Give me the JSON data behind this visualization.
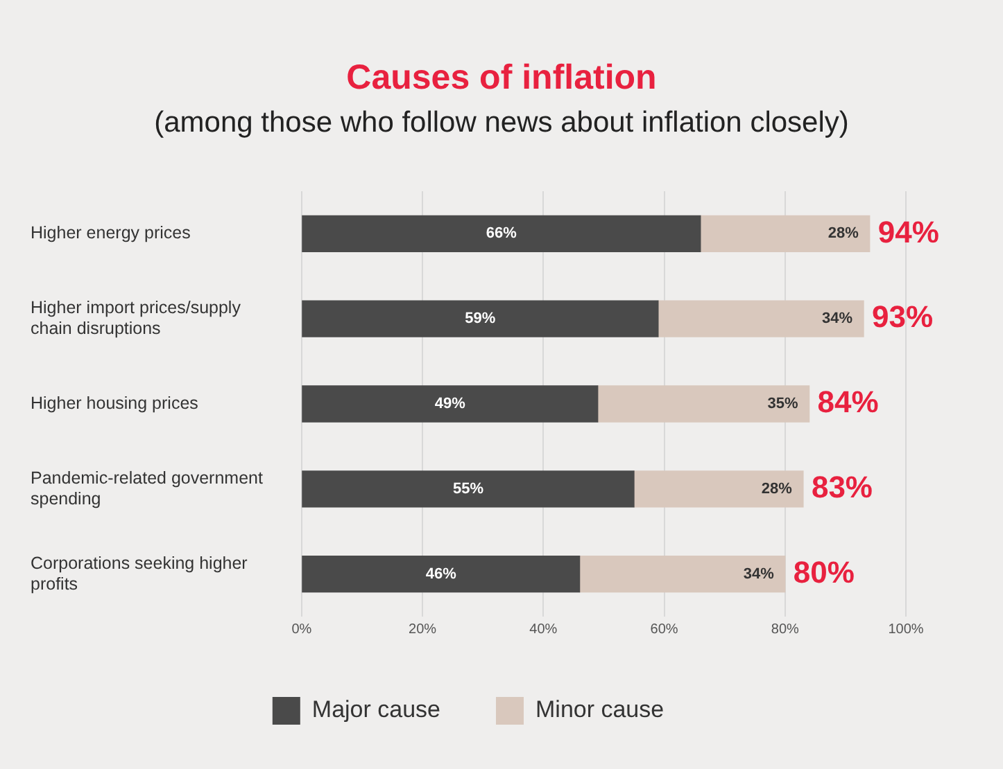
{
  "chart_data": {
    "type": "bar",
    "orientation": "horizontal",
    "stacked": true,
    "title": "Causes of inflation",
    "subtitle": "(among those who follow news about inflation closely)",
    "categories": [
      "Higher energy prices",
      "Higher import prices/supply chain disruptions",
      "Higher housing prices",
      "Pandemic-related government spending",
      "Corporations seeking higher profits"
    ],
    "series": [
      {
        "name": "Major cause",
        "color": "#4a4a4a",
        "values": [
          66,
          59,
          49,
          55,
          46
        ],
        "value_labels": [
          "66%",
          "59%",
          "49%",
          "55%",
          "46%"
        ]
      },
      {
        "name": "Minor cause",
        "color": "#d9c8bd",
        "values": [
          28,
          34,
          35,
          28,
          34
        ],
        "value_labels": [
          "28%",
          "34%",
          "35%",
          "28%",
          "34%"
        ]
      }
    ],
    "totals": [
      "94%",
      "93%",
      "84%",
      "83%",
      "80%"
    ],
    "xlim": [
      0,
      100
    ],
    "xticks": [
      {
        "value": 0,
        "label": "0%"
      },
      {
        "value": 20,
        "label": "20%"
      },
      {
        "value": 40,
        "label": "40%"
      },
      {
        "value": 60,
        "label": "60%"
      },
      {
        "value": 80,
        "label": "80%"
      },
      {
        "value": 100,
        "label": "100%"
      }
    ],
    "grid": "x",
    "legend": "bottom"
  }
}
